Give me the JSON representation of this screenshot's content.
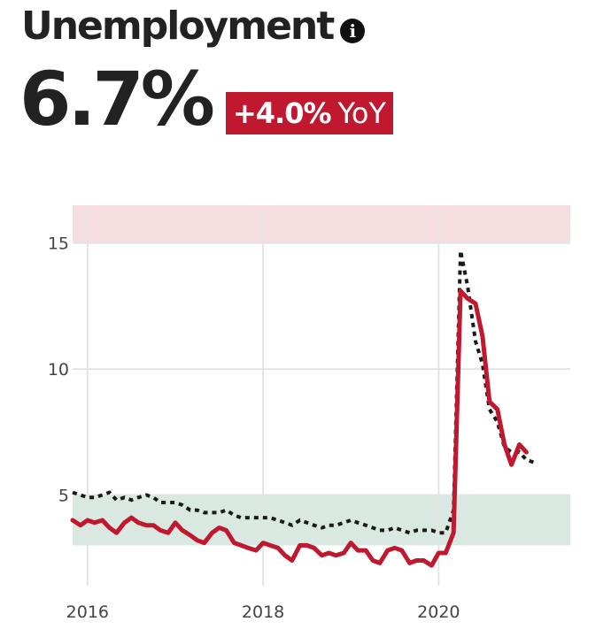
{
  "header": {
    "title": "Unemployment",
    "info_icon": "info-icon",
    "value": "6.7%",
    "change": "+4.0%",
    "change_unit": "YoY"
  },
  "colors": {
    "badge": "#c0192f",
    "actual_line": "#c0192f",
    "trend_line": "#1a1a1a",
    "high_band": "#f5dde0",
    "low_band": "#d9e9e2",
    "grid": "#e4e4e4"
  },
  "chart_data": {
    "type": "line",
    "title": "",
    "xlabel": "",
    "ylabel": "",
    "x_ticks": [
      "2016",
      "2018",
      "2020"
    ],
    "y_ticks": [
      "5",
      "10",
      "15"
    ],
    "xlim": [
      2015.83,
      2021.5
    ],
    "ylim": [
      1.4,
      16.5
    ],
    "grid": true,
    "bands": [
      {
        "from": 15,
        "to": 16.5
      },
      {
        "from": 3,
        "to": 5
      }
    ],
    "series": [
      {
        "style": "solid",
        "x": [
          2015.83,
          2015.92,
          2016.0,
          2016.08,
          2016.17,
          2016.25,
          2016.33,
          2016.42,
          2016.5,
          2016.58,
          2016.67,
          2016.75,
          2016.83,
          2016.92,
          2017.0,
          2017.08,
          2017.17,
          2017.25,
          2017.33,
          2017.42,
          2017.5,
          2017.58,
          2017.67,
          2017.75,
          2017.83,
          2017.92,
          2018.0,
          2018.08,
          2018.17,
          2018.25,
          2018.33,
          2018.42,
          2018.5,
          2018.58,
          2018.67,
          2018.75,
          2018.83,
          2018.92,
          2019.0,
          2019.08,
          2019.17,
          2019.25,
          2019.33,
          2019.42,
          2019.5,
          2019.58,
          2019.67,
          2019.75,
          2019.83,
          2019.92,
          2020.0,
          2020.08,
          2020.17,
          2020.25,
          2020.33,
          2020.42,
          2020.5,
          2020.58,
          2020.67,
          2020.75,
          2020.83,
          2020.92,
          2021.0
        ],
        "values": [
          4.0,
          3.8,
          4.0,
          3.9,
          4.0,
          3.7,
          3.5,
          3.9,
          4.1,
          3.9,
          3.8,
          3.8,
          3.6,
          3.5,
          3.9,
          3.6,
          3.4,
          3.2,
          3.1,
          3.5,
          3.7,
          3.6,
          3.1,
          3.0,
          2.9,
          2.8,
          3.1,
          3.0,
          2.9,
          2.6,
          2.4,
          3.0,
          3.0,
          2.9,
          2.6,
          2.7,
          2.6,
          2.7,
          3.1,
          2.8,
          2.8,
          2.4,
          2.3,
          2.8,
          2.9,
          2.8,
          2.3,
          2.4,
          2.4,
          2.2,
          2.7,
          2.7,
          3.5,
          13.1,
          12.8,
          12.6,
          11.3,
          8.7,
          8.4,
          7.0,
          6.2,
          7.0,
          6.7
        ]
      },
      {
        "style": "dotted",
        "x": [
          2015.83,
          2015.92,
          2016.0,
          2016.08,
          2016.17,
          2016.25,
          2016.33,
          2016.42,
          2016.5,
          2016.58,
          2016.67,
          2016.75,
          2016.83,
          2016.92,
          2017.0,
          2017.08,
          2017.17,
          2017.25,
          2017.33,
          2017.42,
          2017.5,
          2017.58,
          2017.67,
          2017.75,
          2017.83,
          2017.92,
          2018.0,
          2018.08,
          2018.17,
          2018.25,
          2018.33,
          2018.42,
          2018.5,
          2018.58,
          2018.67,
          2018.75,
          2018.83,
          2018.92,
          2019.0,
          2019.08,
          2019.17,
          2019.25,
          2019.33,
          2019.42,
          2019.5,
          2019.58,
          2019.67,
          2019.75,
          2019.83,
          2019.92,
          2020.0,
          2020.08,
          2020.17,
          2020.25,
          2020.33,
          2020.42,
          2020.5,
          2020.58,
          2020.67,
          2020.75,
          2020.83,
          2020.92,
          2021.0,
          2021.08
        ],
        "values": [
          5.1,
          5.0,
          4.9,
          4.9,
          5.0,
          5.1,
          4.8,
          4.9,
          4.8,
          4.9,
          5.0,
          4.9,
          4.7,
          4.7,
          4.7,
          4.6,
          4.4,
          4.4,
          4.3,
          4.3,
          4.3,
          4.4,
          4.2,
          4.1,
          4.1,
          4.1,
          4.1,
          4.1,
          4.0,
          3.9,
          3.8,
          4.0,
          3.9,
          3.8,
          3.7,
          3.8,
          3.8,
          3.9,
          4.0,
          3.9,
          3.8,
          3.7,
          3.6,
          3.6,
          3.7,
          3.6,
          3.5,
          3.6,
          3.6,
          3.6,
          3.5,
          3.5,
          4.4,
          14.7,
          13.3,
          11.1,
          10.2,
          8.4,
          7.9,
          6.9,
          6.7,
          6.7,
          6.4,
          6.3
        ]
      }
    ]
  }
}
